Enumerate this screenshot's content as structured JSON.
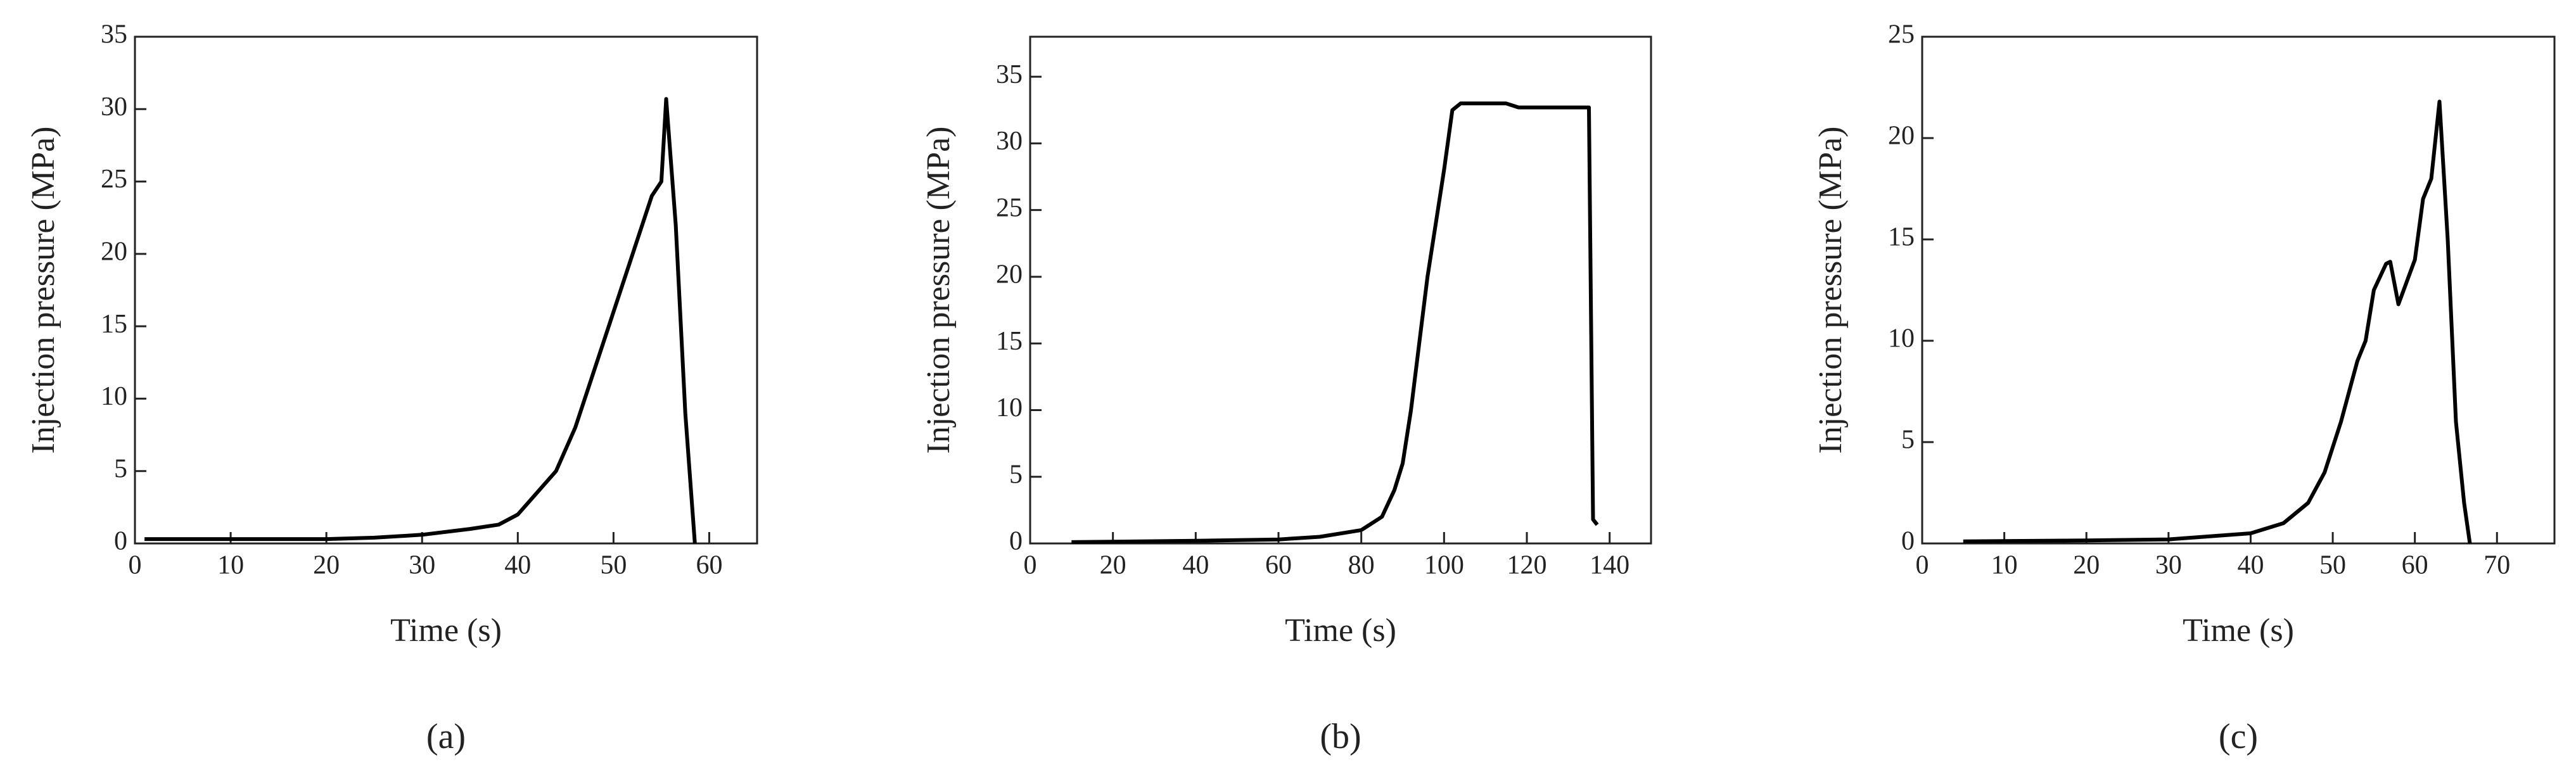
{
  "chart_data": [
    {
      "type": "line",
      "panel_label": "(a)",
      "x_label": "Time (s)",
      "y_label": "Injection pressure (MPa)",
      "color": "#000000",
      "xlim": [
        0,
        65
      ],
      "xticks": [
        0,
        10,
        20,
        30,
        40,
        50,
        60
      ],
      "ylim": [
        0,
        35
      ],
      "yticks": [
        0,
        5,
        10,
        15,
        20,
        25,
        30,
        35
      ],
      "x": [
        1,
        10,
        20,
        25,
        30,
        35,
        38,
        40,
        42,
        44,
        46,
        48,
        50,
        52,
        54,
        55,
        55.5,
        56.5,
        57.5,
        58.5
      ],
      "values": [
        0.3,
        0.3,
        0.3,
        0.4,
        0.6,
        1.0,
        1.3,
        2,
        3.5,
        5,
        8,
        12,
        16,
        20,
        24,
        25,
        30.7,
        22,
        9,
        0
      ]
    },
    {
      "type": "line",
      "panel_label": "(b)",
      "x_label": "Time (s)",
      "y_label": "Injection pressure (MPa)",
      "color": "#000000",
      "xlim": [
        0,
        150
      ],
      "xticks": [
        0,
        20,
        40,
        60,
        80,
        100,
        120,
        140
      ],
      "ylim": [
        0,
        38
      ],
      "yticks": [
        0,
        5,
        10,
        15,
        20,
        25,
        30,
        35
      ],
      "x": [
        10,
        40,
        60,
        70,
        80,
        85,
        88,
        90,
        92,
        94,
        96,
        98,
        100,
        102,
        104,
        115,
        118,
        135,
        136,
        137
      ],
      "values": [
        0.1,
        0.2,
        0.3,
        0.5,
        1,
        2,
        4,
        6,
        10,
        15,
        20,
        24,
        28,
        32.5,
        33,
        33,
        32.7,
        32.7,
        1.8,
        1.4
      ]
    },
    {
      "type": "line",
      "panel_label": "(c)",
      "x_label": "Time (s)",
      "y_label": "Injection pressure (MPa)",
      "color": "#000000",
      "xlim": [
        0,
        77
      ],
      "xticks": [
        0,
        10,
        20,
        30,
        40,
        50,
        60,
        70
      ],
      "ylim": [
        0,
        25
      ],
      "yticks": [
        0,
        5,
        10,
        15,
        20,
        25
      ],
      "x": [
        5,
        20,
        30,
        40,
        44,
        47,
        49,
        51,
        53,
        54,
        55,
        56.5,
        57,
        58,
        60,
        61,
        62,
        63,
        64,
        65,
        66,
        66.7
      ],
      "values": [
        0.1,
        0.15,
        0.2,
        0.5,
        1,
        2,
        3.5,
        6,
        9,
        10,
        12.5,
        13.8,
        13.9,
        11.8,
        14,
        17,
        18,
        21.8,
        15,
        6,
        2,
        0
      ]
    }
  ]
}
